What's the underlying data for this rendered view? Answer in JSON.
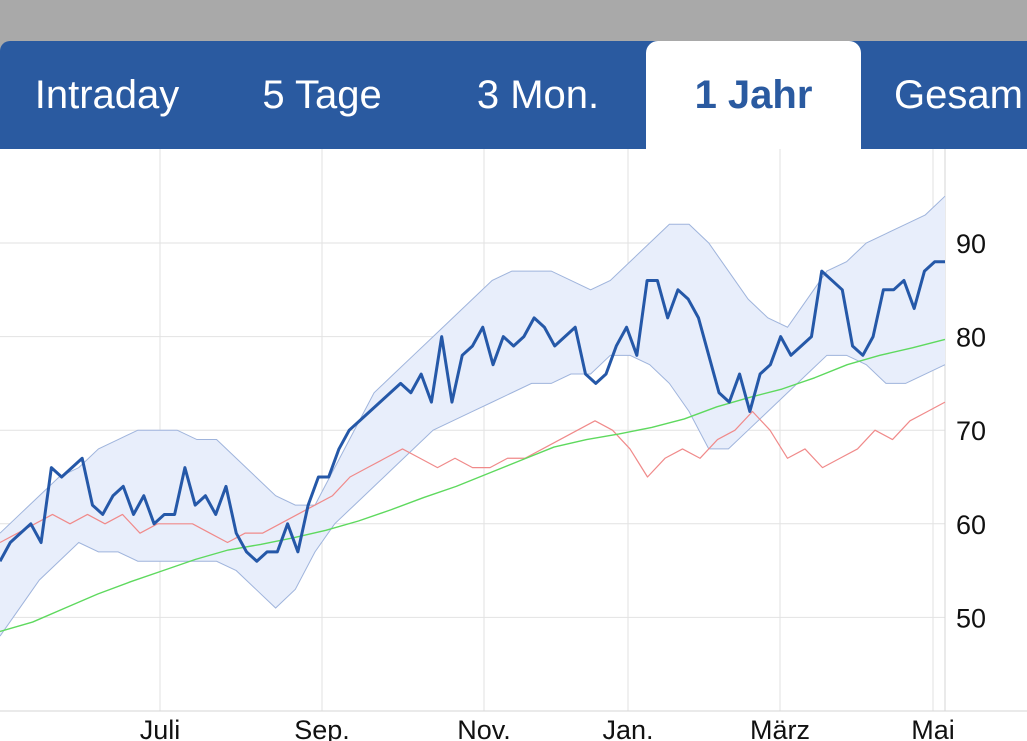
{
  "tabs": [
    {
      "label": "Intraday",
      "active": false
    },
    {
      "label": "5 Tage",
      "active": false
    },
    {
      "label": "3 Mon.",
      "active": false
    },
    {
      "label": "1 Jahr",
      "active": true
    },
    {
      "label": "Gesam",
      "active": false
    }
  ],
  "colors": {
    "tab_bar": "#2a5aa0",
    "price_line": "#2558a8",
    "band_fill": "#e8eefb",
    "band_edge": "#9fb4dc",
    "moving_average": "#5ed95e",
    "comparison_line": "#f08a8a",
    "grid": "#e2e2e2"
  },
  "chart_data": {
    "type": "line",
    "period": "1 Jahr",
    "ylim": [
      40,
      100
    ],
    "y_ticks": [
      50,
      60,
      70,
      80,
      90
    ],
    "x_ticks": [
      "Juli",
      "Sep.",
      "Nov.",
      "Jan.",
      "März",
      "Mai"
    ],
    "grid": true,
    "series": [
      {
        "key": "price",
        "style": "bold-line",
        "values": [
          56,
          58,
          59,
          60,
          58,
          66,
          65,
          66,
          67,
          62,
          61,
          63,
          64,
          61,
          63,
          60,
          61,
          61,
          66,
          62,
          63,
          61,
          64,
          59,
          57,
          56,
          57,
          57,
          60,
          57,
          62,
          65,
          65,
          68,
          70,
          71,
          72,
          73,
          74,
          75,
          74,
          76,
          73,
          80,
          73,
          78,
          79,
          81,
          77,
          80,
          79,
          80,
          82,
          81,
          79,
          80,
          81,
          76,
          75,
          76,
          79,
          81,
          78,
          86,
          86,
          82,
          85,
          84,
          82,
          78,
          74,
          73,
          76,
          72,
          76,
          77,
          80,
          78,
          79,
          80,
          87,
          86,
          85,
          79,
          78,
          80,
          85,
          85,
          86,
          83,
          87,
          88,
          88
        ],
        "x_range": [
          0,
          945
        ]
      },
      {
        "key": "band_upper",
        "style": "band",
        "values": [
          59,
          61,
          63,
          65,
          66,
          68,
          69,
          70,
          70,
          70,
          69,
          69,
          67,
          65,
          63,
          62,
          62,
          66,
          70,
          74,
          76,
          78,
          80,
          82,
          84,
          86,
          87,
          87,
          87,
          86,
          85,
          86,
          88,
          90,
          92,
          92,
          90,
          87,
          84,
          82,
          81,
          84,
          87,
          88,
          90,
          91,
          92,
          93,
          95
        ],
        "x_range": [
          0,
          945
        ]
      },
      {
        "key": "band_lower",
        "style": "band",
        "values": [
          48,
          51,
          54,
          56,
          58,
          57,
          57,
          56,
          56,
          56,
          56,
          56,
          55,
          53,
          51,
          53,
          57,
          60,
          62,
          64,
          66,
          68,
          70,
          71,
          72,
          73,
          74,
          75,
          75,
          76,
          76,
          78,
          78,
          77,
          75,
          72,
          68,
          68,
          70,
          72,
          74,
          76,
          78,
          78,
          77,
          75,
          75,
          76,
          77
        ],
        "x_range": [
          0,
          945
        ]
      },
      {
        "key": "moving_average",
        "style": "thin-line",
        "values": [
          48.5,
          49.5,
          51,
          52.5,
          53.8,
          55,
          56.2,
          57.2,
          57.8,
          58.5,
          59.3,
          60.3,
          61.5,
          62.8,
          64,
          65.4,
          66.8,
          68.2,
          69,
          69.6,
          70.3,
          71.2,
          72.5,
          73.5,
          74.4,
          75.6,
          77,
          78,
          78.8,
          79.7
        ],
        "x_range": [
          0,
          945
        ]
      },
      {
        "key": "comparison",
        "style": "thin-line",
        "values": [
          58,
          59,
          60,
          61,
          60,
          61,
          60,
          61,
          59,
          60,
          60,
          60,
          59,
          58,
          59,
          59,
          60,
          61,
          62,
          63,
          65,
          66,
          67,
          68,
          67,
          66,
          67,
          66,
          66,
          67,
          67,
          68,
          69,
          70,
          71,
          70,
          68,
          65,
          67,
          68,
          67,
          69,
          70,
          72,
          70,
          67,
          68,
          66,
          67,
          68,
          70,
          69,
          71,
          72,
          73
        ],
        "x_range": [
          0,
          945
        ]
      }
    ]
  }
}
